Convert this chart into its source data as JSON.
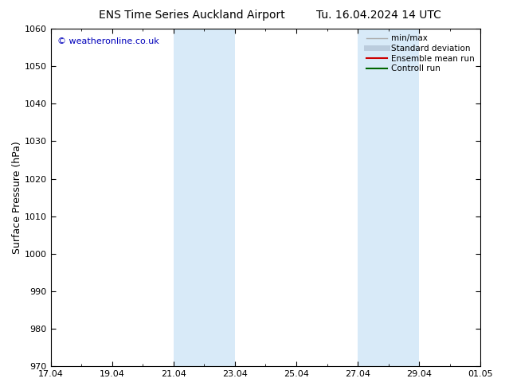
{
  "title_left": "ENS Time Series Auckland Airport",
  "title_right": "Tu. 16.04.2024 14 UTC",
  "ylabel": "Surface Pressure (hPa)",
  "ylim": [
    970,
    1060
  ],
  "yticks": [
    970,
    980,
    990,
    1000,
    1010,
    1020,
    1030,
    1040,
    1050,
    1060
  ],
  "xlim_start": 0,
  "xlim_end": 14,
  "xtick_labels": [
    "17.04",
    "19.04",
    "21.04",
    "23.04",
    "25.04",
    "27.04",
    "29.04",
    "01.05"
  ],
  "xtick_positions": [
    0,
    2,
    4,
    6,
    8,
    10,
    12,
    14
  ],
  "shaded_bands": [
    {
      "xstart": 4.0,
      "xend": 6.0
    },
    {
      "xstart": 10.0,
      "xend": 12.0
    }
  ],
  "shaded_color": "#d8eaf8",
  "watermark_text": "© weatheronline.co.uk",
  "watermark_color": "#0000bb",
  "legend_entries": [
    {
      "label": "min/max",
      "color": "#aaaaaa",
      "lw": 1.0
    },
    {
      "label": "Standard deviation",
      "color": "#bbccdd",
      "lw": 5.0
    },
    {
      "label": "Ensemble mean run",
      "color": "#cc0000",
      "lw": 1.5
    },
    {
      "label": "Controll run",
      "color": "#006600",
      "lw": 1.5
    }
  ],
  "background_color": "#ffffff",
  "spine_color": "#000000",
  "title_fontsize": 10,
  "axis_label_fontsize": 9,
  "tick_fontsize": 8,
  "legend_fontsize": 7.5,
  "watermark_fontsize": 8
}
